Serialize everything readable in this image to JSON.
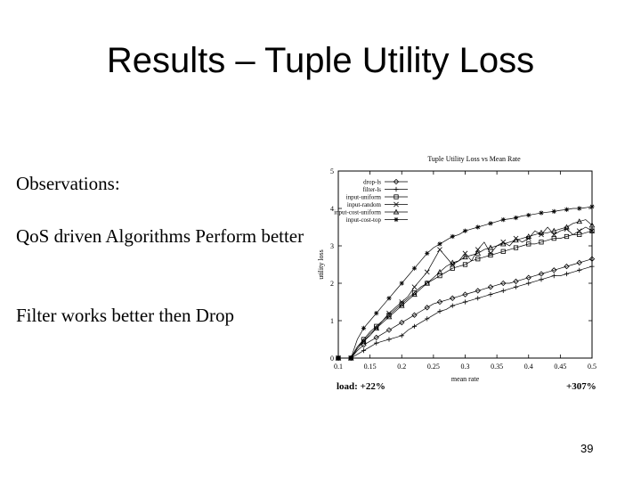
{
  "slide": {
    "title": "Results – Tuple Utility Loss",
    "observations_heading": "Observations:",
    "observation_1": "QoS driven Algorithms Perform better",
    "observation_2": "Filter works better then Drop",
    "load_left": "load: +22%",
    "load_right": "+307%",
    "page_number": "39"
  },
  "chart_data": {
    "type": "line",
    "title": "Tuple Utility Loss vs Mean Rate",
    "xlabel": "mean rate",
    "ylabel": "utility loss",
    "xlim": [
      0.1,
      0.5
    ],
    "ylim": [
      0,
      5
    ],
    "xticks": [
      "0.1",
      "0.15",
      "0.2",
      "0.25",
      "0.3",
      "0.35",
      "0.4",
      "0.45",
      "0.5"
    ],
    "yticks": [
      "0",
      "1",
      "2",
      "3",
      "4",
      "5"
    ],
    "legend_position": "top-left",
    "grid": false,
    "x": [
      0.1,
      0.11,
      0.12,
      0.13,
      0.14,
      0.15,
      0.16,
      0.17,
      0.18,
      0.19,
      0.2,
      0.21,
      0.22,
      0.23,
      0.24,
      0.25,
      0.26,
      0.27,
      0.28,
      0.29,
      0.3,
      0.31,
      0.32,
      0.33,
      0.34,
      0.35,
      0.36,
      0.37,
      0.38,
      0.39,
      0.4,
      0.41,
      0.42,
      0.43,
      0.44,
      0.45,
      0.46,
      0.47,
      0.48,
      0.49,
      0.5
    ],
    "series": [
      {
        "name": "drop-ls",
        "marker": "diamond",
        "values": [
          0.0,
          0.0,
          0.0,
          0.2,
          0.35,
          0.45,
          0.55,
          0.65,
          0.75,
          0.85,
          0.95,
          1.05,
          1.15,
          1.25,
          1.35,
          1.45,
          1.5,
          1.55,
          1.6,
          1.65,
          1.7,
          1.75,
          1.8,
          1.85,
          1.9,
          1.95,
          2.0,
          2.0,
          2.05,
          2.1,
          2.15,
          2.2,
          2.25,
          2.3,
          2.35,
          2.4,
          2.45,
          2.5,
          2.55,
          2.6,
          2.65
        ]
      },
      {
        "name": "filter-ls",
        "marker": "plus",
        "values": [
          0.0,
          0.0,
          0.0,
          0.1,
          0.2,
          0.3,
          0.4,
          0.45,
          0.5,
          0.55,
          0.6,
          0.75,
          0.85,
          0.95,
          1.05,
          1.15,
          1.25,
          1.3,
          1.4,
          1.45,
          1.5,
          1.55,
          1.6,
          1.65,
          1.7,
          1.75,
          1.8,
          1.85,
          1.9,
          1.95,
          2.0,
          2.05,
          2.1,
          2.15,
          2.2,
          2.2,
          2.25,
          2.3,
          2.35,
          2.4,
          2.45
        ]
      },
      {
        "name": "input-uniform",
        "marker": "square",
        "values": [
          0.0,
          0.0,
          0.0,
          0.3,
          0.5,
          0.7,
          0.85,
          1.0,
          1.15,
          1.3,
          1.45,
          1.6,
          1.75,
          1.9,
          2.0,
          2.1,
          2.2,
          2.3,
          2.4,
          2.45,
          2.5,
          2.6,
          2.65,
          2.7,
          2.75,
          2.8,
          2.85,
          2.9,
          2.95,
          3.0,
          3.05,
          3.05,
          3.1,
          3.15,
          3.2,
          3.2,
          3.25,
          3.3,
          3.3,
          3.35,
          3.4
        ]
      },
      {
        "name": "input-random",
        "marker": "x",
        "values": [
          0.0,
          0.0,
          0.0,
          0.3,
          0.45,
          0.6,
          0.8,
          1.0,
          1.2,
          1.35,
          1.5,
          1.65,
          1.9,
          2.1,
          2.3,
          2.6,
          2.9,
          2.7,
          2.5,
          2.6,
          2.8,
          2.6,
          2.9,
          3.1,
          2.8,
          3.0,
          3.1,
          3.0,
          3.2,
          3.1,
          3.2,
          3.4,
          3.3,
          3.5,
          3.3,
          3.4,
          3.45,
          3.3,
          3.4,
          3.5,
          3.4
        ]
      },
      {
        "name": "input-cost-uniform",
        "marker": "triangle",
        "values": [
          0.0,
          0.0,
          0.0,
          0.25,
          0.45,
          0.65,
          0.8,
          0.95,
          1.1,
          1.25,
          1.4,
          1.55,
          1.7,
          1.85,
          2.0,
          2.15,
          2.3,
          2.45,
          2.55,
          2.6,
          2.7,
          2.75,
          2.8,
          2.9,
          2.95,
          3.0,
          3.05,
          3.1,
          3.15,
          3.2,
          3.25,
          3.3,
          3.35,
          3.35,
          3.4,
          3.45,
          3.5,
          3.6,
          3.65,
          3.7,
          3.55
        ]
      },
      {
        "name": "input-cost-top",
        "marker": "star",
        "values": [
          0.0,
          0.0,
          0.0,
          0.5,
          0.8,
          1.0,
          1.2,
          1.4,
          1.6,
          1.8,
          2.0,
          2.2,
          2.4,
          2.6,
          2.8,
          2.95,
          3.05,
          3.15,
          3.25,
          3.3,
          3.4,
          3.45,
          3.5,
          3.55,
          3.6,
          3.65,
          3.7,
          3.72,
          3.75,
          3.8,
          3.82,
          3.85,
          3.88,
          3.9,
          3.92,
          3.95,
          3.97,
          4.0,
          4.0,
          4.02,
          4.05
        ]
      }
    ]
  }
}
